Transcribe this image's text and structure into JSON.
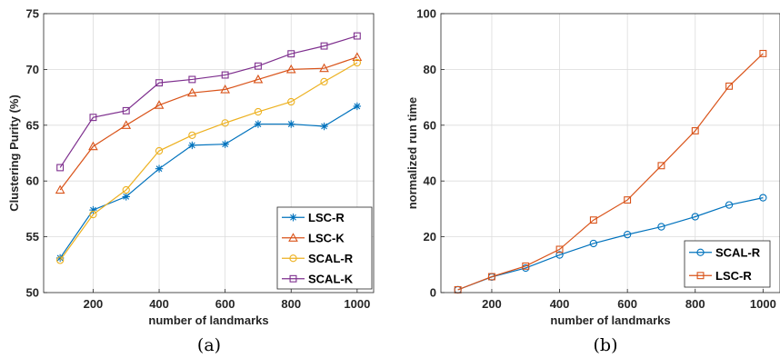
{
  "chart_data": [
    {
      "type": "line",
      "caption": "(a)",
      "xlabel": "number of landmarks",
      "ylabel": "Clustering Purity (%)",
      "x": [
        100,
        200,
        300,
        400,
        500,
        600,
        700,
        800,
        900,
        1000
      ],
      "xlim": [
        50,
        1050
      ],
      "ylim": [
        50,
        75
      ],
      "xticks": [
        200,
        400,
        600,
        800,
        1000
      ],
      "yticks": [
        50,
        55,
        60,
        65,
        70,
        75
      ],
      "grid": true,
      "legend_position": "bottom-right",
      "series": [
        {
          "name": "LSC-R",
          "color": "#0072BD",
          "marker": "asterisk",
          "values": [
            53.1,
            57.4,
            58.6,
            61.1,
            63.2,
            63.3,
            65.1,
            65.1,
            64.9,
            66.7
          ]
        },
        {
          "name": "LSC-K",
          "color": "#D95319",
          "marker": "triangle",
          "values": [
            59.2,
            63.1,
            65.0,
            66.8,
            67.9,
            68.2,
            69.1,
            70.0,
            70.1,
            71.1
          ]
        },
        {
          "name": "SCAL-R",
          "color": "#EDB120",
          "marker": "circle",
          "values": [
            52.9,
            57.0,
            59.2,
            62.7,
            64.1,
            65.2,
            66.2,
            67.1,
            68.9,
            70.6
          ]
        },
        {
          "name": "SCAL-K",
          "color": "#7E2F8E",
          "marker": "square",
          "values": [
            61.2,
            65.7,
            66.3,
            68.8,
            69.1,
            69.5,
            70.3,
            71.4,
            72.1,
            73.0
          ]
        }
      ]
    },
    {
      "type": "line",
      "caption": "(b)",
      "xlabel": "number of landmarks",
      "ylabel": "normalized run time",
      "x": [
        100,
        200,
        300,
        400,
        500,
        600,
        700,
        800,
        900,
        1000
      ],
      "xlim": [
        50,
        1050
      ],
      "ylim": [
        0,
        100
      ],
      "xticks": [
        200,
        400,
        600,
        800,
        1000
      ],
      "yticks": [
        0,
        20,
        40,
        60,
        80,
        100
      ],
      "grid": true,
      "legend_position": "bottom-right",
      "series": [
        {
          "name": "SCAL-R",
          "color": "#0072BD",
          "marker": "circle",
          "values": [
            1.0,
            5.6,
            8.8,
            13.5,
            17.6,
            20.8,
            23.6,
            27.2,
            31.4,
            34.0
          ]
        },
        {
          "name": "LSC-R",
          "color": "#D95319",
          "marker": "square",
          "values": [
            1.0,
            5.7,
            9.5,
            15.5,
            26.0,
            33.2,
            45.5,
            58.0,
            74.0,
            85.7
          ]
        }
      ]
    }
  ]
}
